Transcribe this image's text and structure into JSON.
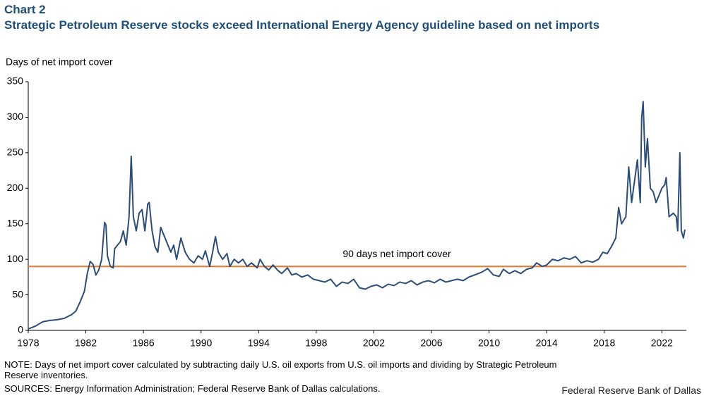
{
  "chart_data": {
    "type": "line",
    "chart_label": "Chart 2",
    "title": "Strategic Petroleum Reserve stocks exceed International Energy Agency guideline based on net imports",
    "ylabel": "Days of net import cover",
    "note": "NOTE: Days of net import cover calculated by subtracting daily U.S. oil exports from U.S. oil imports and dividing by Strategic Petroleum Reserve inventories.",
    "sources": "SOURCES: Energy Information Administration; Federal Reserve Bank of Dallas calculations.",
    "credit": "Federal Reserve Bank of Dallas",
    "reference_line": {
      "value": 90,
      "label": "90 days net import cover",
      "color": "#e8742a"
    },
    "xlim": [
      1978,
      2023.7
    ],
    "xticks": [
      1978,
      1982,
      1986,
      1990,
      1994,
      1998,
      2002,
      2006,
      2010,
      2014,
      2018,
      2022
    ],
    "ylim": [
      0,
      350
    ],
    "yticks": [
      0,
      50,
      100,
      150,
      200,
      250,
      300,
      350
    ],
    "x": [
      1978.0,
      1978.5,
      1979,
      1979.5,
      1980,
      1980.5,
      1981,
      1981.3,
      1981.6,
      1981.9,
      1982.1,
      1982.3,
      1982.5,
      1982.7,
      1982.9,
      1983.1,
      1983.3,
      1983.4,
      1983.5,
      1983.7,
      1983.9,
      1984.0,
      1984.2,
      1984.4,
      1984.6,
      1984.8,
      1985.0,
      1985.15,
      1985.3,
      1985.5,
      1985.7,
      1985.9,
      1986.1,
      1986.3,
      1986.4,
      1986.6,
      1986.8,
      1987.0,
      1987.2,
      1987.4,
      1987.6,
      1987.9,
      1988.1,
      1988.3,
      1988.6,
      1988.9,
      1989.2,
      1989.5,
      1989.8,
      1990.1,
      1990.3,
      1990.6,
      1990.8,
      1991.0,
      1991.2,
      1991.5,
      1991.8,
      1992.0,
      1992.3,
      1992.6,
      1992.9,
      1993.2,
      1993.5,
      1993.9,
      1994.1,
      1994.4,
      1994.7,
      1995.0,
      1995.3,
      1995.6,
      1996.0,
      1996.3,
      1996.6,
      1997.0,
      1997.4,
      1997.8,
      1998.2,
      1998.6,
      1999.0,
      1999.4,
      1999.8,
      2000.2,
      2000.6,
      2001.0,
      2001.4,
      2001.8,
      2002.2,
      2002.6,
      2003.0,
      2003.4,
      2003.8,
      2004.2,
      2004.6,
      2005.0,
      2005.4,
      2005.8,
      2006.2,
      2006.6,
      2007.0,
      2007.4,
      2007.8,
      2008.2,
      2008.6,
      2009.0,
      2009.5,
      2009.9,
      2010.3,
      2010.7,
      2011.0,
      2011.4,
      2011.8,
      2012.2,
      2012.6,
      2013.0,
      2013.3,
      2013.7,
      2014.0,
      2014.4,
      2014.8,
      2015.2,
      2015.6,
      2016.0,
      2016.4,
      2016.8,
      2017.2,
      2017.6,
      2017.9,
      2018.2,
      2018.5,
      2018.8,
      2019.0,
      2019.2,
      2019.5,
      2019.7,
      2019.9,
      2020.1,
      2020.3,
      2020.5,
      2020.6,
      2020.7,
      2020.85,
      2021.0,
      2021.2,
      2021.4,
      2021.6,
      2021.8,
      2022.0,
      2022.2,
      2022.3,
      2022.5,
      2022.8,
      2023.0,
      2023.1,
      2023.25,
      2023.35,
      2023.5,
      2023.6
    ],
    "series": [
      {
        "name": "Days of net import cover",
        "color": "#2b4d78",
        "values": [
          2,
          6,
          12,
          14,
          15,
          17,
          22,
          27,
          40,
          55,
          80,
          97,
          93,
          78,
          85,
          100,
          152,
          148,
          105,
          90,
          88,
          115,
          120,
          125,
          140,
          120,
          160,
          245,
          160,
          140,
          165,
          170,
          140,
          178,
          180,
          140,
          118,
          110,
          145,
          135,
          125,
          110,
          120,
          100,
          130,
          110,
          100,
          95,
          105,
          100,
          112,
          90,
          110,
          132,
          110,
          100,
          108,
          90,
          100,
          95,
          100,
          90,
          95,
          88,
          100,
          90,
          85,
          92,
          85,
          80,
          88,
          78,
          80,
          75,
          78,
          72,
          70,
          68,
          72,
          62,
          68,
          66,
          72,
          60,
          58,
          62,
          64,
          60,
          65,
          63,
          68,
          66,
          70,
          64,
          68,
          70,
          67,
          72,
          68,
          70,
          72,
          70,
          75,
          78,
          82,
          87,
          78,
          76,
          86,
          80,
          84,
          80,
          86,
          88,
          95,
          90,
          92,
          100,
          98,
          102,
          100,
          104,
          95,
          98,
          96,
          100,
          110,
          108,
          118,
          130,
          173,
          150,
          160,
          230,
          180,
          210,
          240,
          180,
          300,
          322,
          230,
          270,
          200,
          195,
          180,
          190,
          200,
          205,
          215,
          160,
          165,
          160,
          140,
          250,
          140,
          130,
          142
        ]
      }
    ]
  }
}
